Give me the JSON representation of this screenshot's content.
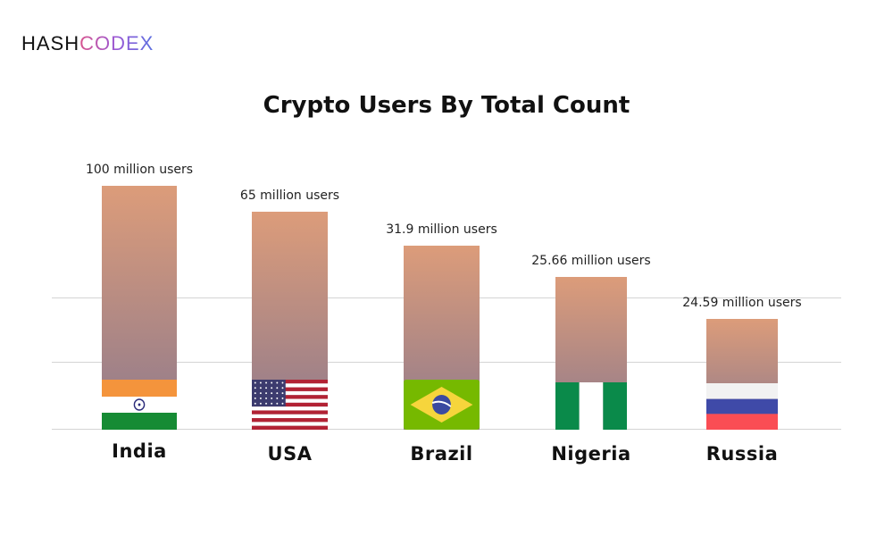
{
  "logo": {
    "part1": "HASH",
    "part2": "CODEX"
  },
  "chart_data": {
    "type": "bar",
    "title": "Crypto Users By Total Count",
    "categories": [
      "India",
      "USA",
      "Brazil",
      "Nigeria",
      "Russia"
    ],
    "values": [
      100,
      65,
      31.9,
      25.66,
      24.59
    ],
    "unit": "million users",
    "data_labels": [
      "100 million users",
      "65 million users",
      "31.9 million users",
      "25.66 million users",
      "24.59 million users"
    ],
    "grid": true,
    "colors": {
      "bar_top": "#dc9c7a",
      "bar_bottom": "#8f7a8c"
    },
    "flag_icons": [
      "india-flag",
      "usa-flag",
      "brazil-flag",
      "nigeria-flag",
      "russia-flag"
    ]
  }
}
